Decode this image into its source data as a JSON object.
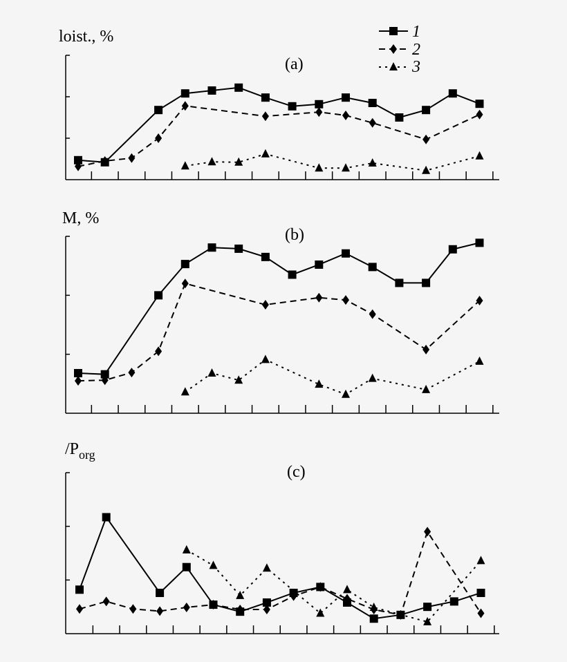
{
  "chart_data": [
    {
      "type": "line",
      "panel_label": "(a)",
      "ylabel": "loist., %",
      "x": [
        1,
        2,
        3,
        4,
        5,
        6,
        7,
        8,
        9,
        10,
        11,
        12,
        13,
        14,
        15,
        16
      ],
      "ylim": [
        0,
        3
      ],
      "grid": false,
      "series": [
        {
          "name": "1",
          "marker": "square",
          "dash": "solid",
          "values": [
            0.47,
            0.42,
            null,
            1.68,
            2.08,
            2.15,
            2.22,
            1.98,
            1.77,
            1.82,
            1.98,
            1.85,
            1.5,
            1.68,
            2.08,
            1.83
          ]
        },
        {
          "name": "2",
          "marker": "diamond",
          "dash": "dashed",
          "values": [
            0.32,
            0.45,
            0.52,
            1.0,
            1.78,
            null,
            null,
            1.53,
            null,
            1.63,
            1.55,
            1.37,
            null,
            0.97,
            null,
            1.57
          ]
        },
        {
          "name": "3",
          "marker": "triangle",
          "dash": "dotted",
          "values": [
            null,
            null,
            null,
            null,
            0.33,
            0.43,
            0.42,
            0.62,
            null,
            0.28,
            0.28,
            0.4,
            null,
            0.22,
            null,
            0.57
          ]
        }
      ]
    },
    {
      "type": "line",
      "panel_label": "(b)",
      "ylabel": "M, %",
      "x": [
        1,
        2,
        3,
        4,
        5,
        6,
        7,
        8,
        9,
        10,
        11,
        12,
        13,
        14,
        15,
        16
      ],
      "ylim": [
        0,
        3
      ],
      "grid": false,
      "series": [
        {
          "name": "1",
          "marker": "square",
          "dash": "solid",
          "values": [
            0.68,
            0.66,
            null,
            2.0,
            2.53,
            2.81,
            2.79,
            2.65,
            2.35,
            2.52,
            2.71,
            2.48,
            2.21,
            2.21,
            2.78,
            2.89
          ]
        },
        {
          "name": "2",
          "marker": "diamond",
          "dash": "dashed",
          "values": [
            0.55,
            0.56,
            0.69,
            1.05,
            2.2,
            null,
            null,
            1.84,
            null,
            1.96,
            1.92,
            1.68,
            null,
            1.08,
            null,
            1.91
          ]
        },
        {
          "name": "3",
          "marker": "triangle",
          "dash": "dotted",
          "values": [
            null,
            null,
            null,
            null,
            0.36,
            0.68,
            0.56,
            0.91,
            null,
            0.49,
            0.32,
            0.59,
            null,
            0.4,
            null,
            0.88
          ]
        }
      ]
    },
    {
      "type": "line",
      "panel_label": "(c)",
      "ylabel": "/P",
      "ylabel_sub": "org",
      "x": [
        1,
        2,
        3,
        4,
        5,
        6,
        7,
        8,
        9,
        10,
        11,
        12,
        13,
        14,
        15,
        16
      ],
      "ylim": [
        0,
        3
      ],
      "grid": false,
      "series": [
        {
          "name": "1",
          "marker": "square",
          "dash": "solid",
          "values": [
            0.82,
            2.17,
            null,
            0.76,
            1.24,
            0.54,
            0.41,
            0.58,
            0.76,
            0.87,
            0.58,
            0.28,
            0.35,
            0.5,
            0.6,
            0.76
          ]
        },
        {
          "name": "2",
          "marker": "diamond",
          "dash": "dashed",
          "values": [
            0.46,
            0.6,
            0.46,
            0.42,
            0.49,
            0.54,
            0.45,
            0.45,
            0.7,
            0.87,
            0.65,
            0.45,
            0.35,
            1.9,
            null,
            0.38
          ]
        },
        {
          "name": "3",
          "marker": "triangle",
          "dash": "dotted",
          "values": [
            null,
            null,
            null,
            null,
            1.56,
            1.27,
            0.71,
            1.22,
            null,
            0.38,
            0.82,
            0.49,
            null,
            0.22,
            null,
            1.36
          ]
        }
      ]
    }
  ],
  "legend": {
    "placement": "top-right",
    "entries": [
      "1",
      "2",
      "3"
    ]
  },
  "colors": {
    "line": "#000000",
    "background": "#f5f5f5"
  }
}
